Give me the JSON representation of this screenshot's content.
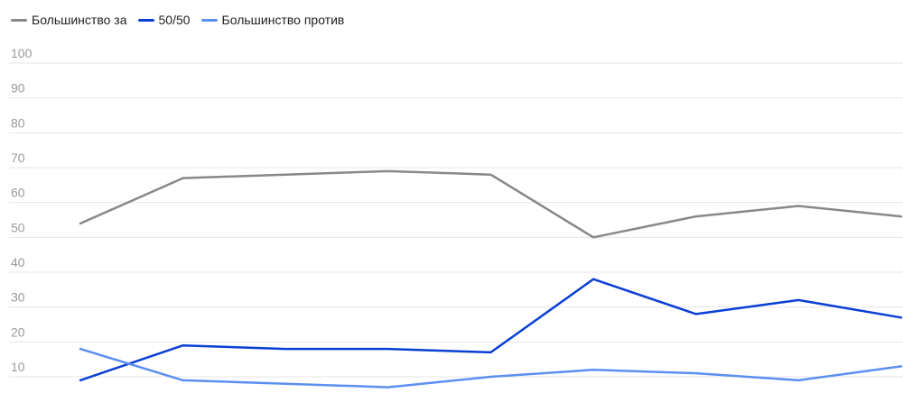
{
  "chart_data": {
    "type": "line",
    "title": "",
    "xlabel": "",
    "ylabel": "",
    "ylim": [
      5,
      100
    ],
    "yticks": [
      10,
      20,
      30,
      40,
      50,
      60,
      70,
      80,
      90,
      100
    ],
    "grid": true,
    "legend_position": "top-left",
    "x": [
      1,
      2,
      3,
      4,
      5,
      6,
      7,
      8,
      9
    ],
    "series": [
      {
        "name": "Большинство за",
        "color": "#888888",
        "values": [
          54,
          67,
          68,
          69,
          68,
          50,
          56,
          59,
          56
        ]
      },
      {
        "name": "50/50",
        "color": "#0a3fd4",
        "values": [
          9,
          19,
          18,
          18,
          17,
          38,
          28,
          32,
          27
        ]
      },
      {
        "name": "Большинство против",
        "color": "#5b8ff0",
        "values": [
          18,
          9,
          8,
          7,
          10,
          12,
          11,
          9,
          13
        ]
      }
    ]
  }
}
